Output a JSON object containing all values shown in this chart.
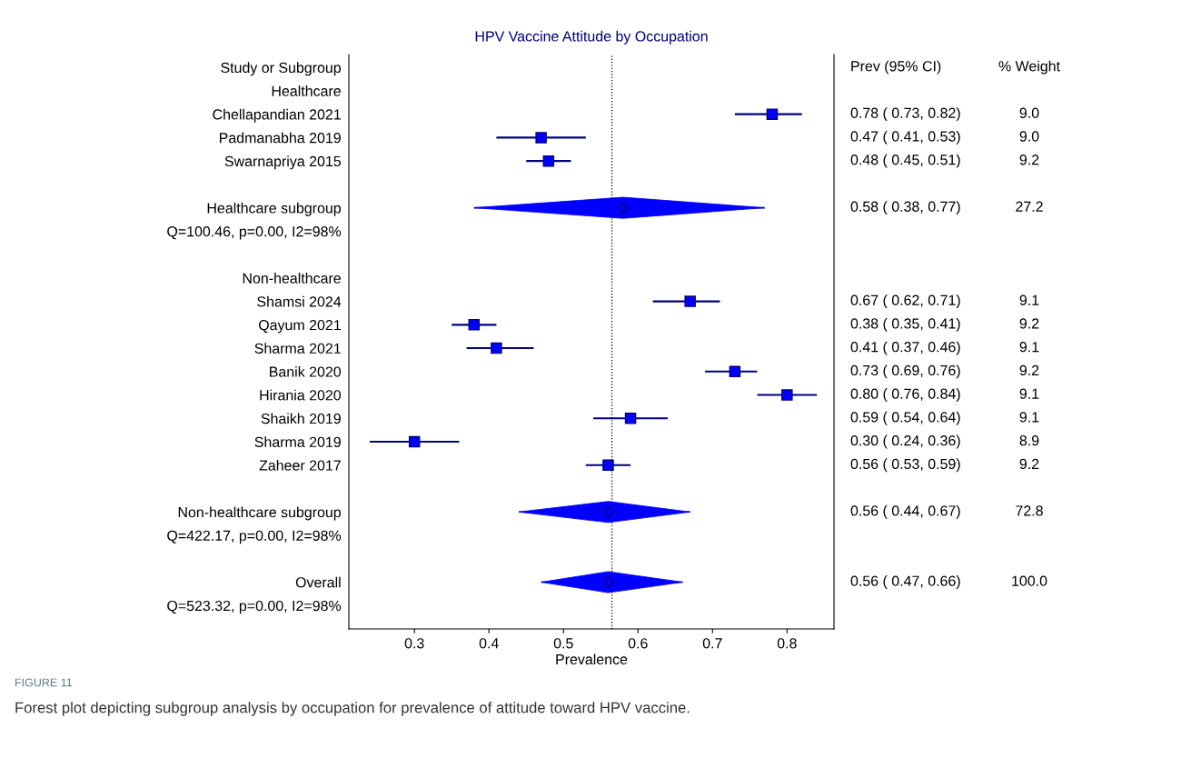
{
  "chart_data": {
    "type": "scatter",
    "orientation": "horizontal",
    "title": "HPV Vaccine Attitude by Occupation",
    "xlabel": "Prevalence",
    "categories": [
      "Study or Subgroup",
      "Healthcare",
      "Chellapandian 2021",
      "Padmanabha 2019",
      "Swarnapriya 2015",
      null,
      "Healthcare subgroup",
      "Q=100.46, p=0.00, I2=98%",
      null,
      "Non-healthcare",
      "Shamsi 2024",
      "Qayum 2021",
      "Sharma 2021",
      "Banik 2020",
      "Hirania 2020",
      "Shaikh 2019",
      "Sharma 2019",
      "Zaheer 2017",
      null,
      "Non-healthcare subgroup",
      "Q=422.17, p=0.00, I2=98%",
      null,
      "Overall",
      "Q=523.32, p=0.00, I2=98%"
    ],
    "series": [
      {
        "type": "scatter",
        "marker": "square",
        "color": "#0000ff",
        "values": [
          null,
          null,
          0.78,
          0.47,
          0.48,
          null,
          null,
          null,
          null,
          null,
          0.67,
          0.38,
          0.41,
          0.73,
          0.8,
          0.59,
          0.3,
          0.56,
          null,
          null,
          null,
          null,
          null,
          null
        ],
        "errors": [
          null,
          null,
          [
            0.73,
            0.82
          ],
          [
            0.41,
            0.53
          ],
          [
            0.45,
            0.51
          ],
          null,
          null,
          null,
          null,
          null,
          [
            0.62,
            0.71
          ],
          [
            0.35,
            0.41
          ],
          [
            0.37,
            0.46
          ],
          [
            0.69,
            0.76
          ],
          [
            0.76,
            0.84
          ],
          [
            0.54,
            0.64
          ],
          [
            0.24,
            0.36
          ],
          [
            0.53,
            0.59
          ],
          null,
          null,
          null,
          null,
          null,
          null
        ],
        "value_labels": [
          null,
          null,
          "0.78 ( 0.73, 0.82) 9.0",
          "0.47 ( 0.41, 0.53) 9.0",
          "0.48 ( 0.45, 0.51) 9.2",
          null,
          null,
          null,
          null,
          null,
          "0.67 ( 0.62, 0.71) 9.1",
          "0.38 ( 0.35, 0.41) 9.2",
          "0.41 ( 0.37, 0.46) 9.1",
          "0.73 ( 0.69, 0.76) 9.2",
          "0.80 ( 0.76, 0.84) 9.1",
          "0.59 ( 0.54, 0.64) 9.1",
          "0.30 ( 0.24, 0.36) 8.9",
          "0.56 ( 0.53, 0.59) 9.2",
          null,
          null,
          null,
          null,
          null,
          null
        ]
      },
      {
        "type": "scatter",
        "marker": "diamond",
        "color": "#0000ff",
        "values": [
          null,
          null,
          null,
          null,
          null,
          null,
          0.58,
          null,
          null,
          null,
          null,
          null,
          null,
          null,
          null,
          null,
          null,
          null,
          null,
          0.56,
          null,
          null,
          0.56,
          null
        ],
        "errors": [
          null,
          null,
          null,
          null,
          null,
          null,
          [
            0.38,
            0.77
          ],
          null,
          null,
          null,
          null,
          null,
          null,
          null,
          null,
          null,
          null,
          null,
          null,
          [
            0.44,
            0.67
          ],
          null,
          null,
          [
            0.47,
            0.66
          ],
          null
        ],
        "value_labels": [
          null,
          null,
          null,
          null,
          null,
          null,
          "0.58 ( 0.38, 0.77) 27.2",
          null,
          null,
          null,
          null,
          null,
          null,
          null,
          null,
          null,
          null,
          null,
          null,
          "0.56 ( 0.44, 0.67) 72.8",
          null,
          null,
          "0.56 ( 0.47, 0.66) 100.0",
          null
        ]
      }
    ],
    "xlim": [
      0.212,
      0.863
    ],
    "xticks": [
      0.3,
      0.4,
      0.5,
      0.6,
      0.7,
      0.8
    ],
    "ref_lines": [
      {
        "axis": "x",
        "value": 0.565,
        "line_style": "dotted",
        "color": "#000000"
      }
    ],
    "grid": false,
    "legend": false,
    "annotations": [
      "Prev (95% CI)",
      "% Weight",
      "FIGURE 11",
      "Forest plot depicting subgroup analysis by occupation for prevalence of attitude toward HPV vaccine."
    ]
  }
}
